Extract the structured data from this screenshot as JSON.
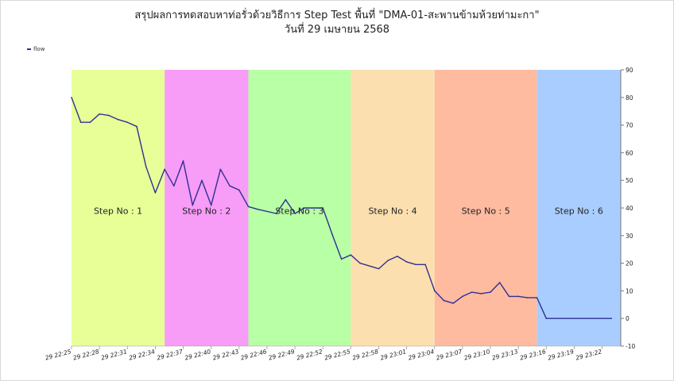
{
  "title_line1": "สรุปผลการทดสอบหาท่อรั่วด้วยวิธีการ Step Test พื้นที่ \"DMA-01-สะพานข้ามห้วยท่ามะกา\"",
  "title_line2": "วันที่ 29 เมษายน 2568",
  "chart_data": {
    "type": "line",
    "title": "สรุปผลการทดสอบหาท่อรั่วด้วยวิธีการ Step Test พื้นที่ \"DMA-01-สะพานข้ามห้วยท่ามะกา\"",
    "subtitle": "วันที่ 29 เมษายน 2568",
    "legend_position": "top-left",
    "grid": false,
    "y_axis_side": "right",
    "ylim": [
      -10,
      90
    ],
    "yticks": [
      -10,
      0,
      10,
      20,
      30,
      40,
      50,
      60,
      70,
      80,
      90
    ],
    "x_range": [
      "29 22:25",
      "29 23:24"
    ],
    "xticks": [
      "29 22:25",
      "29 22:28",
      "29 22:31",
      "29 22:34",
      "29 22:37",
      "29 22:40",
      "29 22:43",
      "29 22:46",
      "29 22:49",
      "29 22:52",
      "29 22:55",
      "29 22:58",
      "29 23:01",
      "29 23:04",
      "29 23:07",
      "29 23:10",
      "29 23:13",
      "29 23:16",
      "29 23:19",
      "29 23:22"
    ],
    "series": [
      {
        "name": "flow",
        "color": "#2e3192",
        "x": [
          "29 22:25",
          "29 22:26",
          "29 22:27",
          "29 22:28",
          "29 22:29",
          "29 22:30",
          "29 22:31",
          "29 22:32",
          "29 22:33",
          "29 22:34",
          "29 22:35",
          "29 22:36",
          "29 22:37",
          "29 22:38",
          "29 22:39",
          "29 22:40",
          "29 22:41",
          "29 22:42",
          "29 22:43",
          "29 22:44",
          "29 22:45",
          "29 22:47",
          "29 22:48",
          "29 22:49",
          "29 22:50",
          "29 22:51",
          "29 22:52",
          "29 22:53",
          "29 22:54",
          "29 22:55",
          "29 22:56",
          "29 22:58",
          "29 22:59",
          "29 23:00",
          "29 23:01",
          "29 23:02",
          "29 23:03",
          "29 23:04",
          "29 23:05",
          "29 23:06",
          "29 23:07",
          "29 23:08",
          "29 23:09",
          "29 23:10",
          "29 23:11",
          "29 23:12",
          "29 23:13",
          "29 23:14",
          "29 23:15",
          "29 23:16",
          "29 23:23"
        ],
        "y": [
          80,
          71,
          71,
          74,
          73.5,
          72,
          71,
          69.5,
          55,
          45.5,
          54,
          48,
          57,
          41,
          50,
          41,
          54,
          48,
          46.5,
          40.5,
          39.5,
          38,
          43,
          38,
          40,
          40,
          40,
          30.5,
          21.5,
          23,
          20,
          18,
          21,
          22.5,
          20.5,
          19.5,
          19.5,
          10,
          6.5,
          5.5,
          8,
          9.5,
          9,
          9.5,
          13,
          8,
          8,
          7.5,
          7.5,
          0,
          0
        ]
      }
    ],
    "steps": [
      {
        "label": "Step No : 1",
        "start": "29 22:25",
        "end": "29 22:35",
        "color": "#e8ff98"
      },
      {
        "label": "Step No : 2",
        "start": "29 22:35",
        "end": "29 22:44",
        "color": "#f79cf7"
      },
      {
        "label": "Step No : 3",
        "start": "29 22:44",
        "end": "29 22:55",
        "color": "#b8ffa6"
      },
      {
        "label": "Step No : 4",
        "start": "29 22:55",
        "end": "29 23:04",
        "color": "#fcdfae"
      },
      {
        "label": "Step No : 5",
        "start": "29 23:04",
        "end": "29 23:15",
        "color": "#ffbba0"
      },
      {
        "label": "Step No : 6",
        "start": "29 23:15",
        "end": "29 23:24",
        "color": "#a9cdff"
      }
    ]
  }
}
